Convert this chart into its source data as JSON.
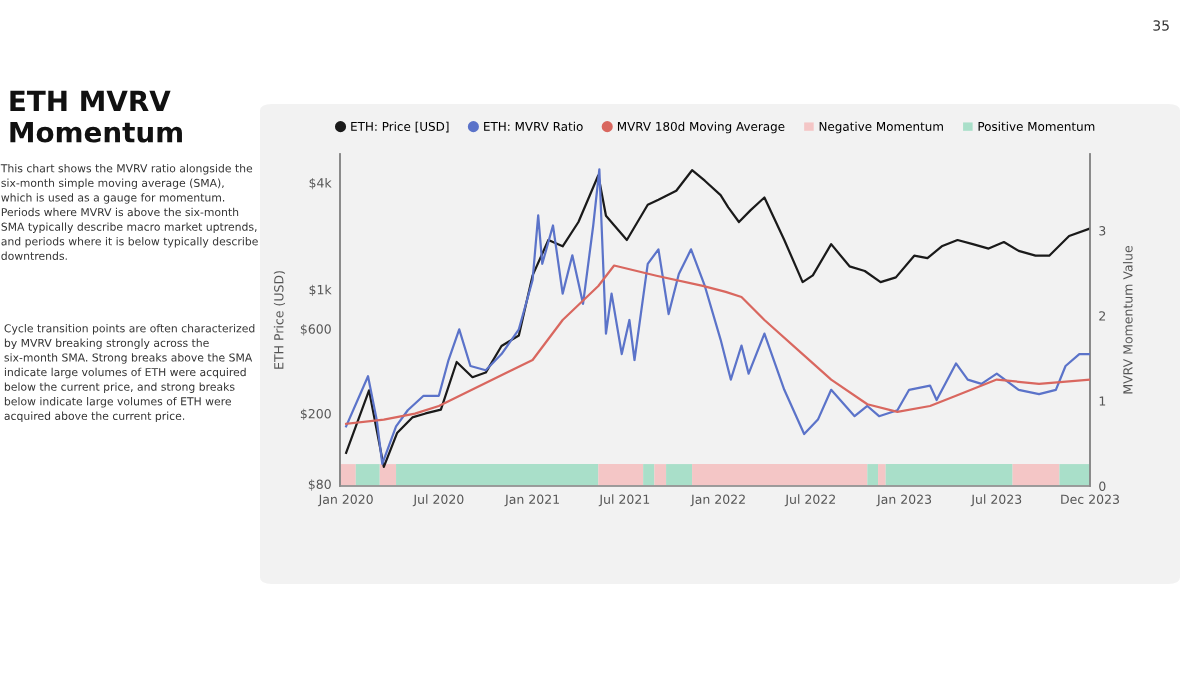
{
  "chart_data": {
    "type": "line",
    "title": "ETH MVRV Momentum",
    "annotations": [
      "This chart shows the MVRV ratio alongside the six-month simple moving average (SMA), which is used as a gauge for momentum. Periods where MVRV is above the six-month SMA typically describe macro market uptrends, and periods where it is below typically describe downtrends.",
      "Cycle transition points are often characterized by MVRV breaking strongly across the six-month SMA. Strong breaks above the SMA indicate large volumes of ETH were acquired below the current price, and strong breaks below indicate large volumes of ETH were acquired above the current price.",
      "35"
    ],
    "ylabel": "ETH Price (USD)",
    "y2label": "MVRV Momentum Value",
    "xlim": [
      "2019-12-20",
      "2023-12-31"
    ],
    "xticks": [
      {
        "value": "2020-01-01",
        "label": "Jan 2020"
      },
      {
        "value": "2020-07-01",
        "label": "Jul 2020"
      },
      {
        "value": "2021-01-01",
        "label": "Jan 2021"
      },
      {
        "value": "2021-07-01",
        "label": "Jul 2021"
      },
      {
        "value": "2022-01-01",
        "label": "Jan 2022"
      },
      {
        "value": "2022-07-01",
        "label": "Jul 2022"
      },
      {
        "value": "2023-01-01",
        "label": "Jan 2023"
      },
      {
        "value": "2023-07-01",
        "label": "Jul 2023"
      },
      {
        "value": "2023-12-31",
        "label": "Dec 2023"
      }
    ],
    "log": "y",
    "ylim": [
      78,
      5800
    ],
    "yticks": [
      {
        "value": 80,
        "label": "$80"
      },
      {
        "value": 200,
        "label": "$200"
      },
      {
        "value": 600,
        "label": "$600"
      },
      {
        "value": 1000,
        "label": "$1k"
      },
      {
        "value": 4000,
        "label": "$4k"
      }
    ],
    "y2lim": [
      0,
      3.9
    ],
    "y2ticks": [
      0,
      1,
      2,
      3
    ],
    "legend": "top",
    "marker": "none",
    "line_style": "solid",
    "series": [
      {
        "name": "ETH: Price [USD]",
        "color": "#1a1a1a",
        "x": [
          "2020-01-01",
          "2020-02-15",
          "2020-03-15",
          "2020-04-10",
          "2020-05-10",
          "2020-06-05",
          "2020-07-05",
          "2020-08-05",
          "2020-09-05",
          "2020-10-01",
          "2020-11-01",
          "2020-12-05",
          "2021-01-01",
          "2021-02-01",
          "2021-03-01",
          "2021-04-01",
          "2021-05-10",
          "2021-05-25",
          "2021-06-10",
          "2021-07-05",
          "2021-08-15",
          "2021-09-05",
          "2021-10-10",
          "2021-11-10",
          "2021-12-05",
          "2022-01-05",
          "2022-01-20",
          "2022-02-10",
          "2022-03-05",
          "2022-04-01",
          "2022-05-10",
          "2022-06-15",
          "2022-07-05",
          "2022-08-10",
          "2022-09-15",
          "2022-10-15",
          "2022-11-15",
          "2022-12-15",
          "2023-01-20",
          "2023-02-15",
          "2023-03-15",
          "2023-04-15",
          "2023-05-15",
          "2023-06-15",
          "2023-07-15",
          "2023-08-13",
          "2023-09-15",
          "2023-10-12",
          "2023-11-20",
          "2023-12-30"
        ],
        "values": [
          120,
          270,
          100,
          155,
          190,
          200,
          210,
          390,
          320,
          340,
          480,
          550,
          1200,
          1900,
          1750,
          2400,
          4400,
          2600,
          2300,
          1900,
          3000,
          3200,
          3600,
          4700,
          4100,
          3400,
          2900,
          2400,
          2800,
          3300,
          1900,
          1100,
          1200,
          1800,
          1350,
          1270,
          1100,
          1170,
          1550,
          1500,
          1750,
          1900,
          1800,
          1700,
          1850,
          1650,
          1550,
          1550,
          2000,
          2200
        ]
      },
      {
        "name": "ETH: MVRV Ratio",
        "color": "#5b73c9",
        "axis": "y2",
        "x": [
          "2020-01-01",
          "2020-02-13",
          "2020-03-01",
          "2020-03-12",
          "2020-04-08",
          "2020-05-01",
          "2020-06-01",
          "2020-07-01",
          "2020-07-20",
          "2020-08-10",
          "2020-09-01",
          "2020-10-01",
          "2020-11-01",
          "2020-12-05",
          "2021-01-01",
          "2021-01-12",
          "2021-01-20",
          "2021-02-10",
          "2021-03-01",
          "2021-03-20",
          "2021-04-10",
          "2021-04-30",
          "2021-05-12",
          "2021-05-25",
          "2021-06-05",
          "2021-06-25",
          "2021-07-10",
          "2021-07-20",
          "2021-08-15",
          "2021-09-05",
          "2021-09-25",
          "2021-10-15",
          "2021-11-08",
          "2021-12-05",
          "2022-01-05",
          "2022-01-25",
          "2022-02-15",
          "2022-03-01",
          "2022-04-01",
          "2022-05-10",
          "2022-06-18",
          "2022-07-15",
          "2022-08-10",
          "2022-09-25",
          "2022-10-20",
          "2022-11-12",
          "2022-12-18",
          "2023-01-10",
          "2023-02-20",
          "2023-03-05",
          "2023-04-12",
          "2023-05-05",
          "2023-06-01",
          "2023-07-01",
          "2023-08-13",
          "2023-09-22",
          "2023-10-25",
          "2023-11-13",
          "2023-12-10",
          "2023-12-30"
        ],
        "values": [
          0.7,
          1.29,
          0.78,
          0.26,
          0.7,
          0.89,
          1.06,
          1.06,
          1.48,
          1.84,
          1.41,
          1.36,
          1.55,
          1.84,
          2.42,
          3.18,
          2.61,
          3.06,
          2.26,
          2.71,
          2.14,
          3.06,
          3.72,
          1.79,
          2.26,
          1.55,
          1.95,
          1.48,
          2.61,
          2.78,
          2.02,
          2.49,
          2.78,
          2.35,
          1.72,
          1.25,
          1.65,
          1.32,
          1.79,
          1.13,
          0.61,
          0.78,
          1.13,
          0.82,
          0.94,
          0.82,
          0.89,
          1.13,
          1.18,
          1.01,
          1.44,
          1.25,
          1.2,
          1.32,
          1.13,
          1.08,
          1.13,
          1.41,
          1.55,
          1.55
        ]
      },
      {
        "name": "MVRV 180d Moving Average",
        "color": "#d9675f",
        "axis": "y2",
        "x": [
          "2020-01-01",
          "2020-03-15",
          "2020-05-15",
          "2020-07-01",
          "2021-01-01",
          "2021-03-01",
          "2021-05-10",
          "2021-06-10",
          "2021-09-01",
          "2021-12-01",
          "2022-01-15",
          "2022-02-15",
          "2022-04-01",
          "2022-06-15",
          "2022-08-10",
          "2022-10-20",
          "2022-12-18",
          "2023-02-20",
          "2023-04-12",
          "2023-07-01",
          "2023-09-22",
          "2023-12-30"
        ],
        "values": [
          0.73,
          0.78,
          0.85,
          0.94,
          1.48,
          1.95,
          2.35,
          2.59,
          2.47,
          2.35,
          2.28,
          2.22,
          1.95,
          1.55,
          1.25,
          0.96,
          0.87,
          0.94,
          1.06,
          1.25,
          1.2,
          1.25
        ]
      }
    ],
    "bands": [
      {
        "axis": "x",
        "from": "2019-12-20",
        "to": "2020-01-20",
        "label": "Negative Momentum",
        "color": "#f4c6c6"
      },
      {
        "axis": "x",
        "from": "2020-01-20",
        "to": "2020-03-07",
        "label": "Positive Momentum",
        "color": "#a9dfc9"
      },
      {
        "axis": "x",
        "from": "2020-03-07",
        "to": "2020-04-08",
        "color": "#f4c6c6"
      },
      {
        "axis": "x",
        "from": "2020-04-08",
        "to": "2021-05-10",
        "color": "#a9dfc9"
      },
      {
        "axis": "x",
        "from": "2021-05-10",
        "to": "2021-08-06",
        "color": "#f4c6c6"
      },
      {
        "axis": "x",
        "from": "2021-08-06",
        "to": "2021-08-28",
        "color": "#a9dfc9"
      },
      {
        "axis": "x",
        "from": "2021-08-28",
        "to": "2021-09-20",
        "color": "#f4c6c6"
      },
      {
        "axis": "x",
        "from": "2021-09-20",
        "to": "2021-11-10",
        "color": "#a9dfc9"
      },
      {
        "axis": "x",
        "from": "2021-11-10",
        "to": "2022-10-20",
        "color": "#f4c6c6"
      },
      {
        "axis": "x",
        "from": "2022-10-20",
        "to": "2022-11-10",
        "color": "#a9dfc9"
      },
      {
        "axis": "x",
        "from": "2022-11-10",
        "to": "2022-11-25",
        "color": "#f4c6c6"
      },
      {
        "axis": "x",
        "from": "2022-11-25",
        "to": "2023-08-01",
        "color": "#a9dfc9"
      },
      {
        "axis": "x",
        "from": "2023-08-01",
        "to": "2023-11-01",
        "color": "#f4c6c6"
      },
      {
        "axis": "x",
        "from": "2023-11-01",
        "to": "2023-12-31",
        "color": "#a9dfc9"
      }
    ]
  }
}
